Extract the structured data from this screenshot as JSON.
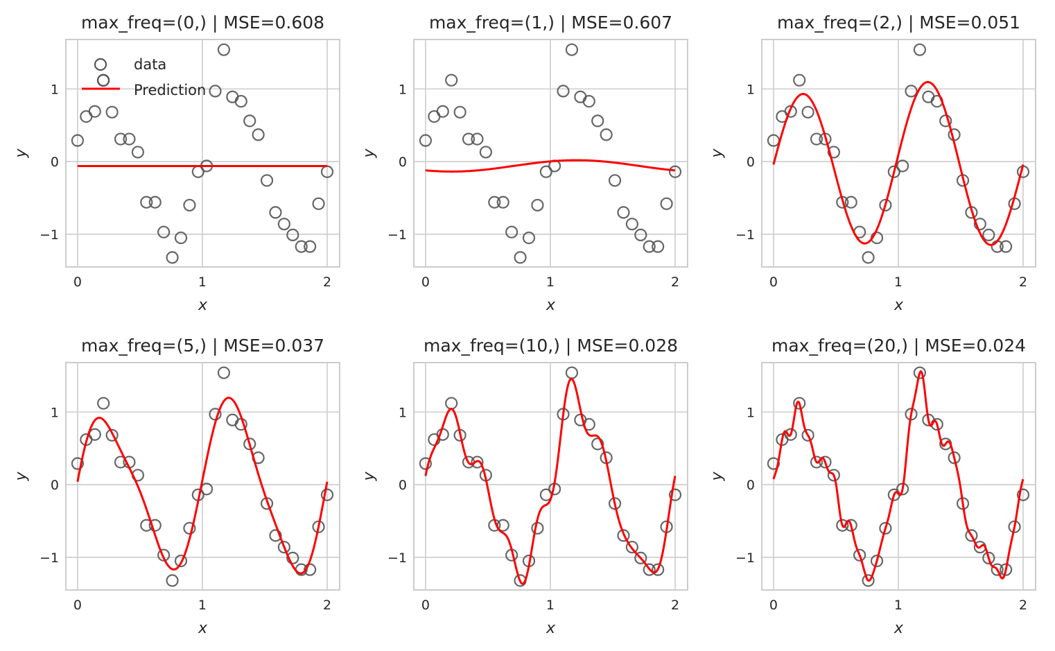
{
  "chart_data": {
    "type": "scatter",
    "layout": "2x3 grid of subplots",
    "xlabel": "x",
    "ylabel": "y",
    "xlim": [
      -0.094,
      2.1
    ],
    "ylim": [
      -1.45,
      1.68
    ],
    "xticks": [
      0,
      1,
      2
    ],
    "yticks": [
      -1,
      0,
      1
    ],
    "xtick_labels": [
      "0",
      "1",
      "2"
    ],
    "ytick_labels": [
      "−1",
      "0",
      "1"
    ],
    "grid": true,
    "legend": {
      "entries": [
        "data",
        "Prediction"
      ],
      "placement": "upper-left",
      "subplot": 0
    },
    "series_colors": {
      "data": "#555555",
      "Prediction": "#ff0000"
    },
    "data": {
      "x": [
        0,
        0.069,
        0.138,
        0.207,
        0.276,
        0.345,
        0.414,
        0.483,
        0.552,
        0.621,
        0.69,
        0.759,
        0.828,
        0.897,
        0.966,
        1.034,
        1.103,
        1.172,
        1.241,
        1.31,
        1.379,
        1.448,
        1.517,
        1.586,
        1.655,
        1.724,
        1.793,
        1.862,
        1.931,
        2.0
      ],
      "y": [
        0.29,
        0.62,
        0.69,
        1.12,
        0.68,
        0.31,
        0.31,
        0.13,
        -0.56,
        -0.56,
        -0.97,
        -1.32,
        -1.05,
        -0.6,
        -0.14,
        -0.06,
        0.97,
        1.54,
        0.89,
        0.83,
        0.56,
        0.37,
        -0.26,
        -0.7,
        -0.86,
        -1.01,
        -1.17,
        -1.17,
        -0.58,
        -0.14
      ]
    },
    "panels": [
      {
        "title": "max_freq=(0,) | MSE=0.608",
        "max_freq": 0,
        "mse": 0.608
      },
      {
        "title": "max_freq=(1,) | MSE=0.607",
        "max_freq": 1,
        "mse": 0.607
      },
      {
        "title": "max_freq=(2,) | MSE=0.051",
        "max_freq": 2,
        "mse": 0.051
      },
      {
        "title": "max_freq=(5,) | MSE=0.037",
        "max_freq": 5,
        "mse": 0.037
      },
      {
        "title": "max_freq=(10,) | MSE=0.028",
        "max_freq": 10,
        "mse": 0.028
      },
      {
        "title": "max_freq=(20,) | MSE=0.024",
        "max_freq": 20,
        "mse": 0.024
      }
    ]
  }
}
